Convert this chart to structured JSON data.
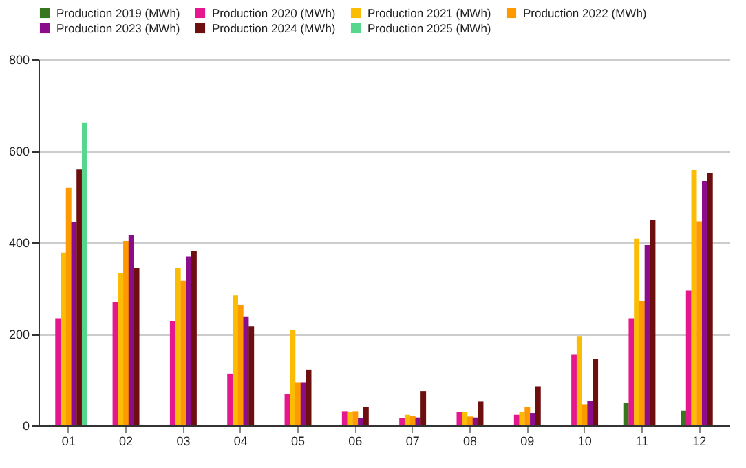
{
  "chart_data": {
    "type": "bar",
    "categories": [
      "01",
      "02",
      "03",
      "04",
      "05",
      "06",
      "07",
      "08",
      "09",
      "10",
      "11",
      "12"
    ],
    "series": [
      {
        "name": "Production 2019 (MWh)",
        "color": "#38761d",
        "values": [
          null,
          null,
          null,
          null,
          null,
          null,
          null,
          null,
          null,
          null,
          49,
          32
        ]
      },
      {
        "name": "Production 2020 (MWh)",
        "color": "#e6168e",
        "values": [
          234,
          269,
          228,
          113,
          69,
          31,
          16,
          29,
          23,
          154,
          234,
          294
        ]
      },
      {
        "name": "Production 2021 (MWh)",
        "color": "#fbbc04",
        "values": [
          378,
          334,
          344,
          284,
          209,
          29,
          23,
          29,
          29,
          195,
          408,
          558
        ]
      },
      {
        "name": "Production 2022 (MWh)",
        "color": "#ff9900",
        "values": [
          519,
          403,
          316,
          263,
          94,
          31,
          21,
          19,
          40,
          46,
          272,
          446
        ]
      },
      {
        "name": "Production 2023 (MWh)",
        "color": "#8b0d8b",
        "values": [
          444,
          416,
          369,
          238,
          94,
          16,
          17,
          17,
          27,
          54,
          394,
          534
        ]
      },
      {
        "name": "Production 2024 (MWh)",
        "color": "#6d0f0f",
        "values": [
          559,
          344,
          381,
          216,
          122,
          40,
          75,
          52,
          85,
          145,
          448,
          552
        ]
      },
      {
        "name": "Production 2025 (MWh)",
        "color": "#57d68d",
        "values": [
          662,
          null,
          null,
          null,
          null,
          null,
          null,
          null,
          null,
          null,
          null,
          null
        ]
      }
    ],
    "ylim": [
      0,
      800
    ],
    "yticks": [
      0,
      200,
      400,
      600,
      800
    ],
    "grid": "y",
    "legend": "top"
  }
}
